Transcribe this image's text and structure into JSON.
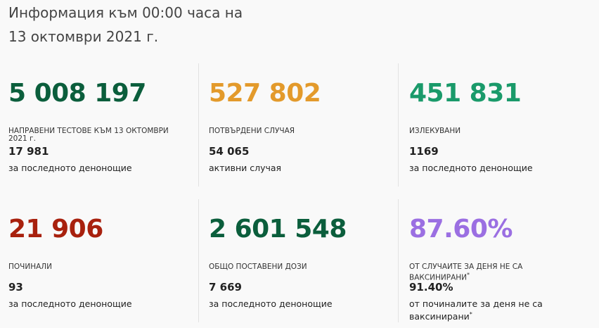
{
  "header": {
    "title_line1": "Информация към 00:00 часа на",
    "title_line2": "13 октомври 2021 г."
  },
  "cards": [
    {
      "number": "5 008 197",
      "color": "#0b5e3c",
      "label": "НАПРАВЕНИ ТЕСТОВЕ КЪМ 13 ОКТОМВРИ 2021 г.",
      "value": "17 981",
      "sublabel": "за последното денонощие"
    },
    {
      "number": "527 802",
      "color": "#e39a2b",
      "label": "ПОТВЪРДЕНИ СЛУЧАЯ",
      "value": "54 065",
      "sublabel": "активни случая"
    },
    {
      "number": "451 831",
      "color": "#1a9a6a",
      "label": "ИЗЛЕКУВАНИ",
      "value": "1169",
      "sublabel": "за последното денонощие"
    },
    {
      "number": "21 906",
      "color": "#a8210e",
      "label": "ПОЧИНАЛИ",
      "value": "93",
      "sublabel": "за последното денонощие"
    },
    {
      "number": "2 601 548",
      "color": "#0b5e3c",
      "label": "ОБЩО ПОСТАВЕНИ ДОЗИ",
      "value": "7 669",
      "sublabel": "за последното денонощие"
    },
    {
      "number": "87.60%",
      "color": "#9b6fe2",
      "label": "ОТ СЛУЧАИТЕ ЗА ДЕНЯ НЕ СА ВАКСИНИРАНИ",
      "label_note": "*",
      "value": "91.40%",
      "sublabel": "от починалите за деня не са ваксинирани",
      "sublabel_note": "*"
    }
  ]
}
